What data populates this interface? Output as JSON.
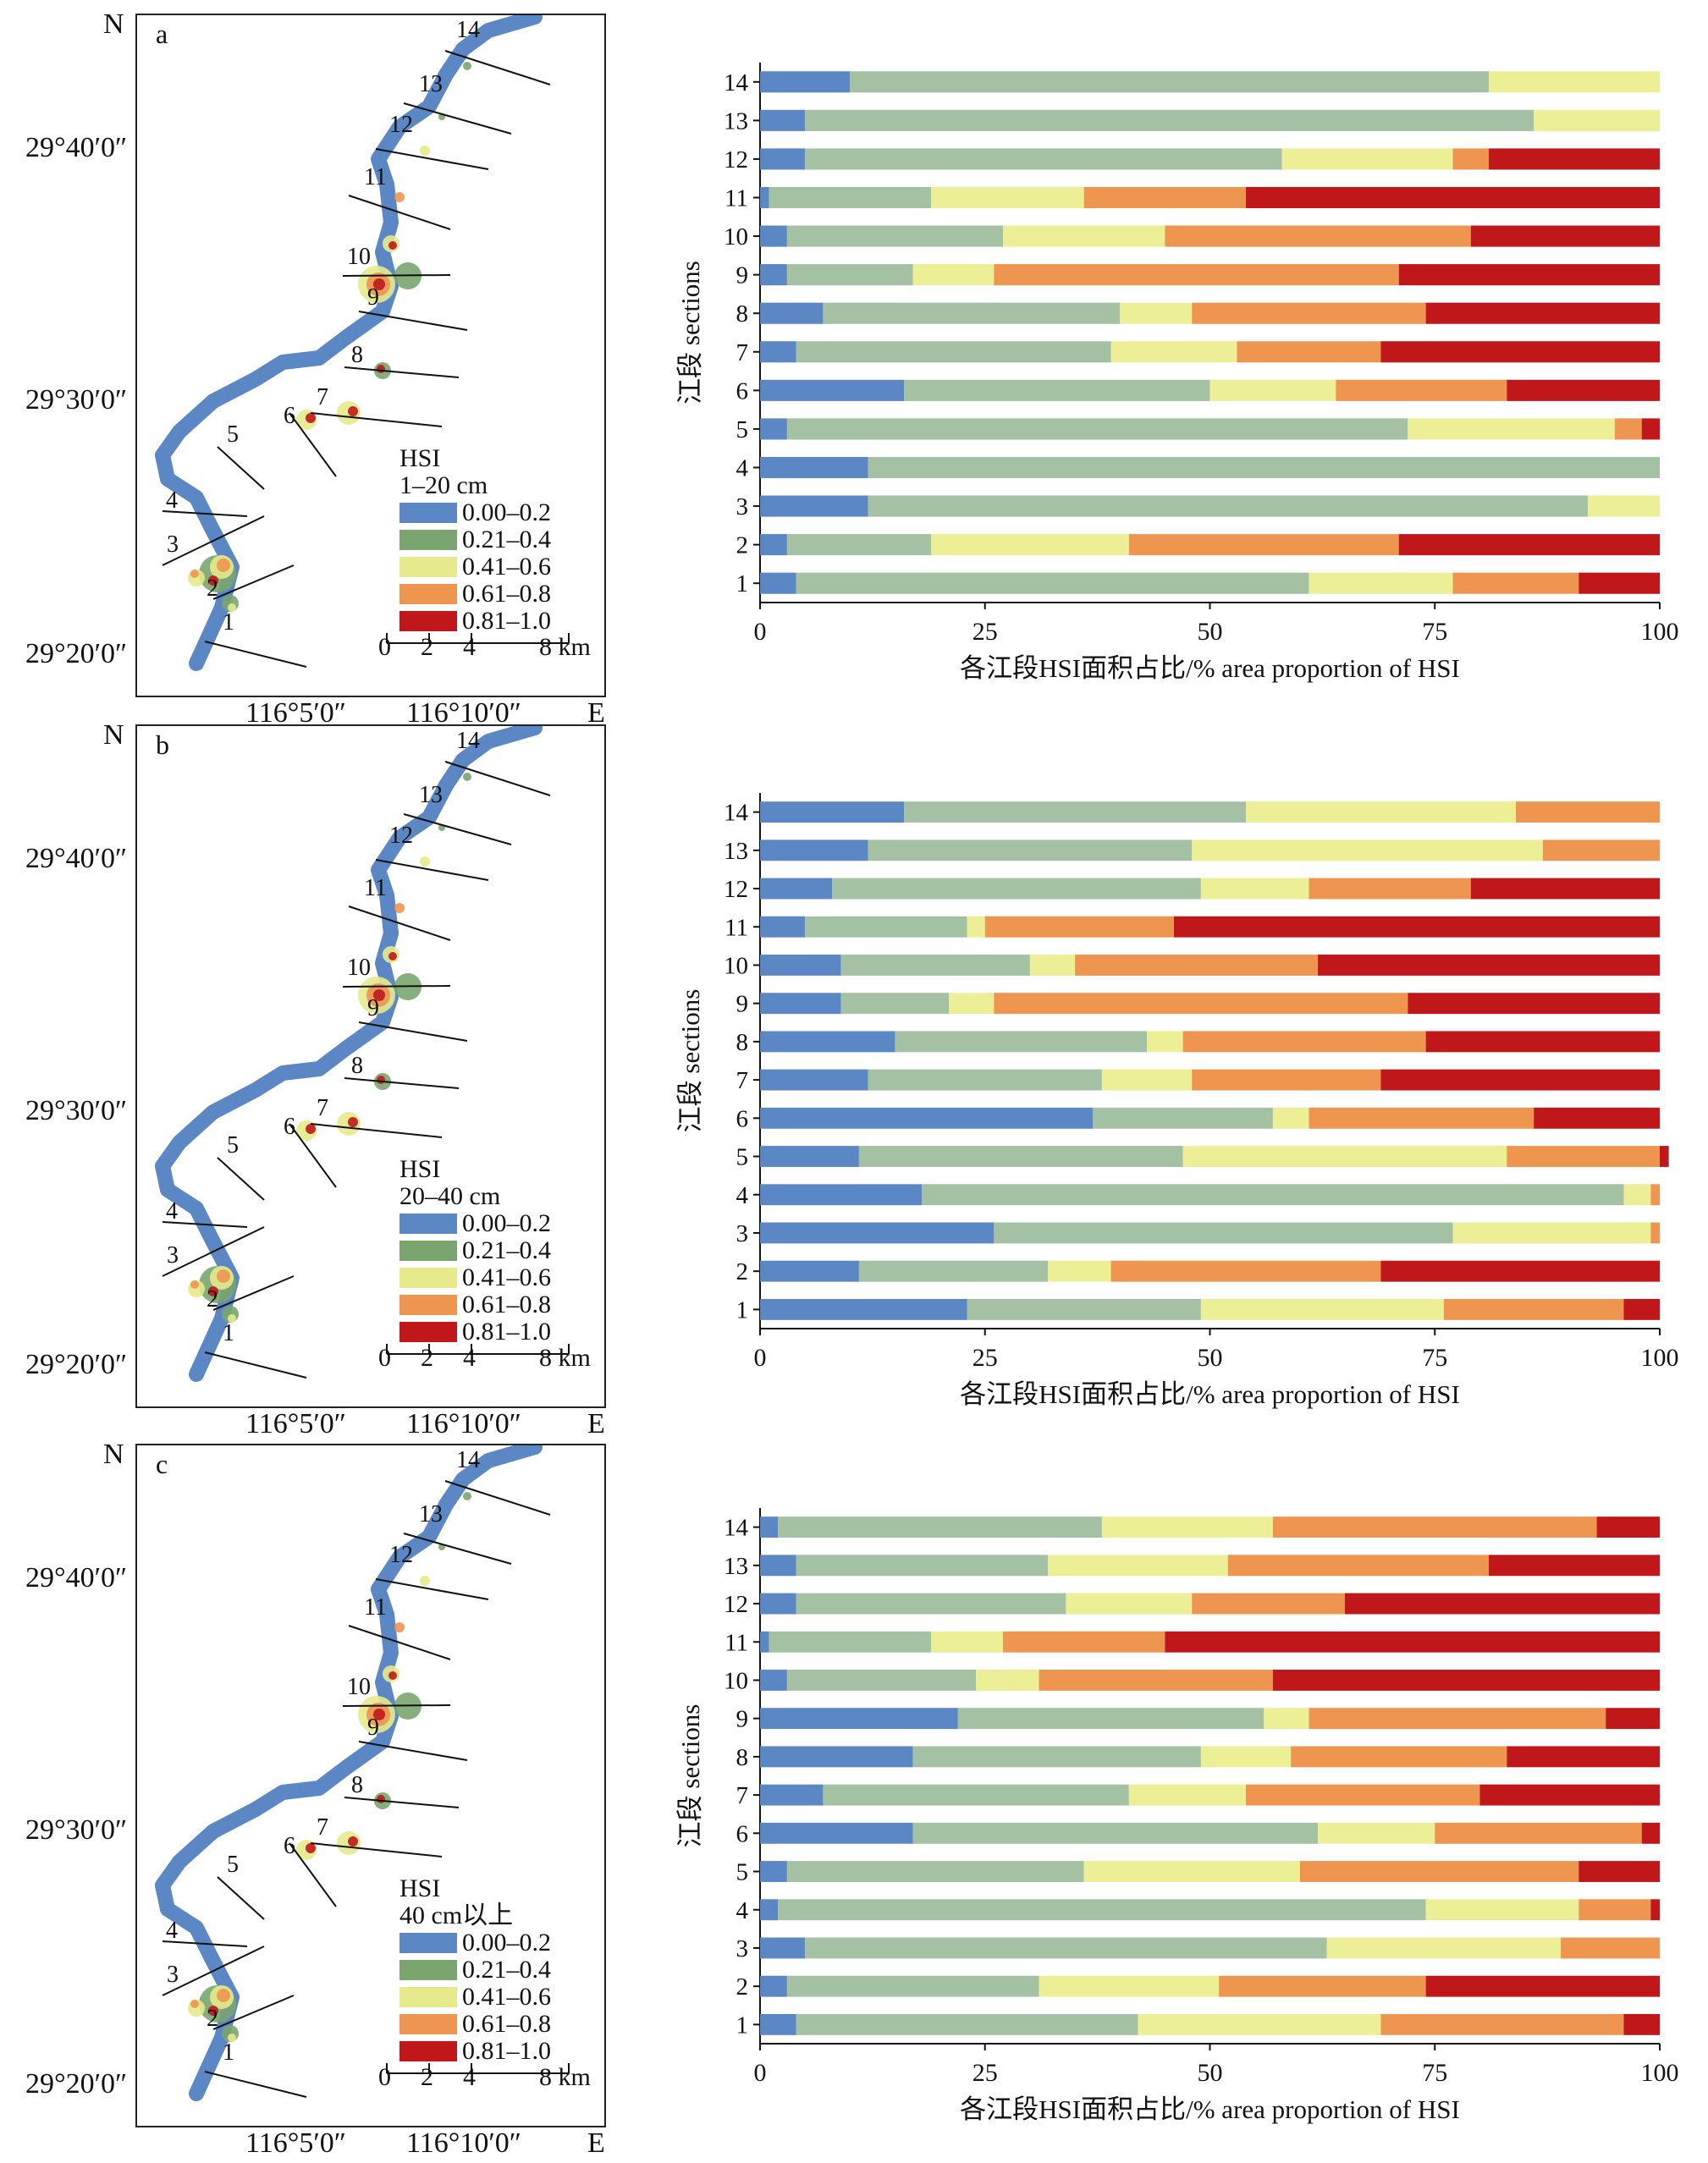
{
  "colors": [
    "#5b87c5",
    "#a4c1a4",
    "#ecef96",
    "#ee9550",
    "#c0171a"
  ],
  "map_colors": {
    "river": "#5b87c5",
    "green": "#7aa56f",
    "yellow": "#e6ea8c",
    "orange": "#ee9550",
    "red": "#c0171a"
  },
  "maps": [
    {
      "letter": "a",
      "north": "N",
      "east": "E",
      "lat_labels": [
        "29°40′0″",
        "29°30′0″",
        "29°20′0″"
      ],
      "lon_labels": [
        "116°5′0″",
        "116°10′0″"
      ],
      "legend_title": "HSI",
      "legend_depth": "1–20 cm",
      "legend_items": [
        "0.00–0.2",
        "0.21–0.4",
        "0.41–0.6",
        "0.61–0.8",
        "0.81–1.0"
      ],
      "scale_ticks": [
        "0",
        "2",
        "4",
        "8 km"
      ],
      "section_labels": [
        "1",
        "2",
        "3",
        "4",
        "5",
        "6",
        "7",
        "8",
        "9",
        "10",
        "11",
        "12",
        "13",
        "14"
      ]
    },
    {
      "letter": "b",
      "north": "N",
      "east": "E",
      "lat_labels": [
        "29°40′0″",
        "29°30′0″",
        "29°20′0″"
      ],
      "lon_labels": [
        "116°5′0″",
        "116°10′0″"
      ],
      "legend_title": "HSI",
      "legend_depth": "20–40 cm",
      "legend_items": [
        "0.00–0.2",
        "0.21–0.4",
        "0.41–0.6",
        "0.61–0.8",
        "0.81–1.0"
      ],
      "scale_ticks": [
        "0",
        "2",
        "4",
        "8 km"
      ],
      "section_labels": [
        "1",
        "2",
        "3",
        "4",
        "5",
        "6",
        "7",
        "8",
        "9",
        "10",
        "11",
        "12",
        "13",
        "14"
      ]
    },
    {
      "letter": "c",
      "north": "N",
      "east": "E",
      "lat_labels": [
        "29°40′0″",
        "29°30′0″",
        "29°20′0″"
      ],
      "lon_labels": [
        "116°5′0″",
        "116°10′0″"
      ],
      "legend_title": "HSI",
      "legend_depth": "40 cm以上",
      "legend_items": [
        "0.00–0.2",
        "0.21–0.4",
        "0.41–0.6",
        "0.61–0.8",
        "0.81–1.0"
      ],
      "scale_ticks": [
        "0",
        "2",
        "4",
        "8 km"
      ],
      "section_labels": [
        "1",
        "2",
        "3",
        "4",
        "5",
        "6",
        "7",
        "8",
        "9",
        "10",
        "11",
        "12",
        "13",
        "14"
      ]
    }
  ],
  "chart_data": [
    {
      "type": "bar",
      "orientation": "horizontal",
      "stacked": true,
      "xlabel": "各江段HSI面积占比/% area proportion of HSI",
      "ylabel": "江段 sections",
      "xlim": [
        0,
        100
      ],
      "xticks": [
        "0",
        "25",
        "50",
        "75",
        "100"
      ],
      "categories": [
        "1",
        "2",
        "3",
        "4",
        "5",
        "6",
        "7",
        "8",
        "9",
        "10",
        "11",
        "12",
        "13",
        "14"
      ],
      "series": [
        {
          "values": [
            4,
            3,
            12,
            12,
            3,
            16,
            4,
            7,
            3,
            3,
            1,
            5,
            5,
            10
          ]
        },
        {
          "values": [
            57,
            16,
            80,
            88,
            69,
            34,
            35,
            33,
            14,
            24,
            18,
            53,
            81,
            71
          ]
        },
        {
          "values": [
            16,
            22,
            8,
            0,
            23,
            14,
            14,
            8,
            9,
            18,
            17,
            19,
            14,
            19
          ]
        },
        {
          "values": [
            14,
            30,
            0,
            0,
            3,
            19,
            16,
            26,
            45,
            34,
            18,
            4,
            0,
            0
          ]
        },
        {
          "values": [
            9,
            29,
            0,
            0,
            2,
            17,
            31,
            26,
            29,
            21,
            46,
            19,
            0,
            0
          ]
        }
      ]
    },
    {
      "type": "bar",
      "orientation": "horizontal",
      "stacked": true,
      "xlabel": "各江段HSI面积占比/% area proportion of HSI",
      "ylabel": "江段 sections",
      "xlim": [
        0,
        100
      ],
      "xticks": [
        "0",
        "25",
        "50",
        "75",
        "100"
      ],
      "categories": [
        "1",
        "2",
        "3",
        "4",
        "5",
        "6",
        "7",
        "8",
        "9",
        "10",
        "11",
        "12",
        "13",
        "14"
      ],
      "series": [
        {
          "values": [
            23,
            11,
            26,
            18,
            11,
            37,
            12,
            15,
            9,
            9,
            5,
            8,
            12,
            16
          ]
        },
        {
          "values": [
            26,
            21,
            51,
            78,
            36,
            20,
            26,
            28,
            12,
            21,
            18,
            41,
            36,
            38
          ]
        },
        {
          "values": [
            27,
            7,
            22,
            3,
            36,
            4,
            10,
            4,
            5,
            5,
            2,
            12,
            39,
            30
          ]
        },
        {
          "values": [
            20,
            30,
            1,
            1,
            17,
            25,
            21,
            27,
            46,
            27,
            21,
            18,
            13,
            16
          ]
        },
        {
          "values": [
            4,
            31,
            0,
            0,
            1,
            14,
            31,
            26,
            28,
            38,
            54,
            21,
            0,
            0
          ]
        }
      ]
    },
    {
      "type": "bar",
      "orientation": "horizontal",
      "stacked": true,
      "xlabel": "各江段HSI面积占比/% area proportion of HSI",
      "ylabel": "江段 sections",
      "xlim": [
        0,
        100
      ],
      "xticks": [
        "0",
        "25",
        "50",
        "75",
        "100"
      ],
      "categories": [
        "1",
        "2",
        "3",
        "4",
        "5",
        "6",
        "7",
        "8",
        "9",
        "10",
        "11",
        "12",
        "13",
        "14"
      ],
      "series": [
        {
          "values": [
            4,
            3,
            5,
            2,
            3,
            17,
            7,
            17,
            22,
            3,
            1,
            4,
            4,
            2
          ]
        },
        {
          "values": [
            38,
            28,
            58,
            72,
            33,
            45,
            34,
            32,
            34,
            21,
            18,
            30,
            28,
            36
          ]
        },
        {
          "values": [
            27,
            20,
            26,
            17,
            24,
            13,
            13,
            10,
            5,
            7,
            8,
            14,
            20,
            19
          ]
        },
        {
          "values": [
            27,
            23,
            11,
            8,
            31,
            23,
            26,
            24,
            33,
            26,
            18,
            17,
            29,
            36
          ]
        },
        {
          "values": [
            4,
            26,
            0,
            1,
            9,
            2,
            20,
            17,
            6,
            43,
            55,
            35,
            19,
            7
          ]
        }
      ]
    }
  ]
}
